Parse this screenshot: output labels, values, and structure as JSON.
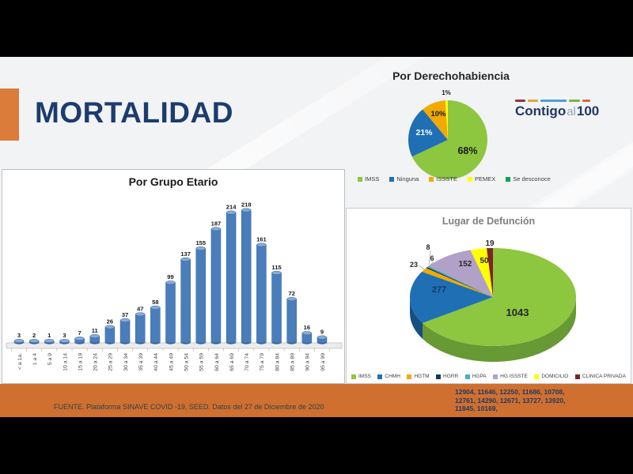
{
  "slide": {
    "title": "MORTALIDAD",
    "footer": "FUENTE. Plataforma SINAVE COVID -19, SEED. Datos del 27 de Diciembre de 2020",
    "footer_numbers": [
      "12904, 11646, 12250, 11686, 10708,",
      "12761, 14290, 12671, 13727, 13920,",
      "11845, 10169,"
    ],
    "logo": {
      "word1": "Contigo",
      "word2": "al",
      "word3": "100"
    }
  },
  "colors": {
    "accent_orange": "#db7c3a",
    "footer_band_orange": "#cf7030",
    "title_navy": "#1c3c6e",
    "logo_navy": "#1f3864",
    "logo_gray": "#93a5bb",
    "logo_dashes": [
      "#8b3a3f",
      "#e0a73e",
      "#4a9fd8",
      "#7cb342",
      "#d9663a"
    ],
    "slide_background": "#f2f3f5",
    "letterbox_black": "#000000"
  },
  "chart_data": [
    {
      "id": "por_grupo_etario",
      "type": "bar",
      "title": "Por Grupo Etario",
      "categories": [
        "< a 1a.",
        "1 a 4",
        "5 a 9",
        "10 a 14",
        "15 a 19",
        "20 a 24",
        "25 a 29",
        "30 a 34",
        "35 a 39",
        "40 a 44",
        "45 a 49",
        "50 a 54",
        "55 a 59",
        "60 a 64",
        "65 a 69",
        "70 a 74",
        "75 a 79",
        "80 a 84",
        "85 a 89",
        "90 a 94",
        "95 a 99"
      ],
      "values": [
        3,
        2,
        1,
        3,
        7,
        11,
        26,
        37,
        47,
        58,
        99,
        137,
        155,
        187,
        214,
        218,
        161,
        115,
        72,
        16,
        9
      ],
      "bar_color": "#4a7ebb",
      "bar_top_color": "#86abd7",
      "bar_edge_color": "#35639b",
      "data_labels": true,
      "ylim": [
        0,
        230
      ],
      "grid": false,
      "legend_position": "none"
    },
    {
      "id": "por_derechohabiencia",
      "type": "pie",
      "title": "Por Derechohabiencia",
      "unit": "%",
      "slices": [
        {
          "label": "IMSS",
          "pct": 68,
          "color": "#8dc63f",
          "label_color": "#1a1a1a"
        },
        {
          "label": "Ninguna",
          "pct": 21,
          "color": "#1f6fb5",
          "label_color": "#ffffff"
        },
        {
          "label": "ISSSTE",
          "pct": 10,
          "color": "#f2a900",
          "label_color": "#1a1a1a"
        },
        {
          "label": "PEMEX",
          "pct": 1,
          "color": "#ffff00",
          "label_color": "#1a1a1a"
        },
        {
          "label": "Se desconoce",
          "pct": 0,
          "color": "#00a651",
          "label_color": "#1a1a1a"
        }
      ],
      "legend_position": "bottom"
    },
    {
      "id": "lugar_de_defuncion",
      "type": "pie3d",
      "title": "Lugar de Defunción",
      "slices": [
        {
          "label": "IMSS",
          "value": 1043,
          "color": "#8dc63f",
          "side_color": "#679934"
        },
        {
          "label": "CHMH",
          "value": 277,
          "color": "#1f6fb5",
          "side_color": "#154f82"
        },
        {
          "label": "HGTM",
          "value": 23,
          "color": "#f2a900"
        },
        {
          "label": "HGRR",
          "value": 6,
          "color": "#17375e"
        },
        {
          "label": "HGPA",
          "value": 8,
          "color": "#4bacc6"
        },
        {
          "label": "HG ISSSTE",
          "value": 152,
          "color": "#b2a1c7"
        },
        {
          "label": "DOMICILIO",
          "value": 50,
          "color": "#ffff00"
        },
        {
          "label": "CLINICA PRIVADA",
          "value": 19,
          "color": "#7d2423"
        }
      ],
      "legend_position": "bottom"
    }
  ]
}
